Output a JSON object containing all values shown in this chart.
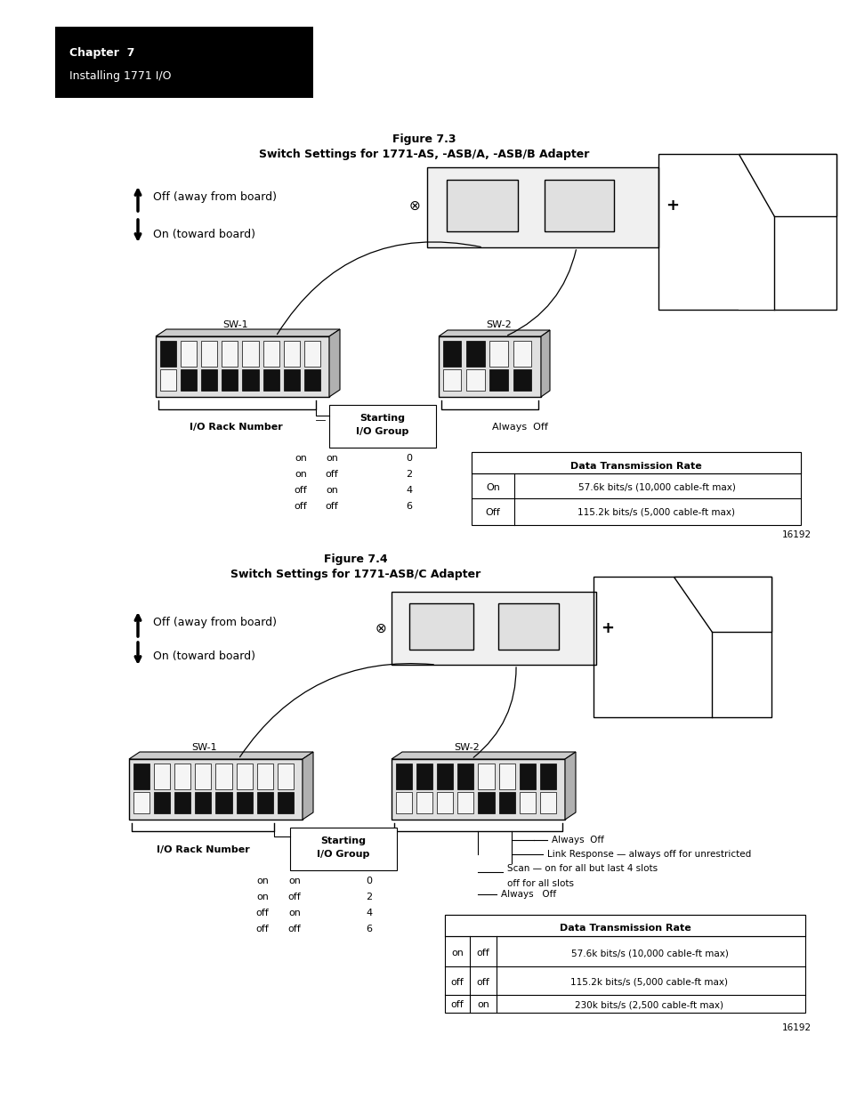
{
  "bg_color": "#ffffff",
  "page_width": 9.54,
  "page_height": 12.35,
  "header_text1": "Chapter  7",
  "header_text2": "Installing 1771 I/O",
  "fig73_title1": "Figure 7.3",
  "fig73_title2": "Switch Settings for 1771-AS, -ASB/A, -ASB/B Adapter",
  "fig74_title1": "Figure 7.4",
  "fig74_title2": "Switch Settings for 1771-ASB/C Adapter",
  "fig_num": "16192",
  "dpi": 100
}
